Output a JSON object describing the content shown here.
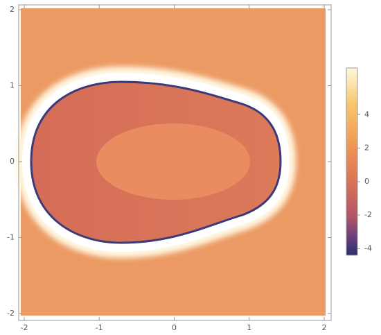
{
  "chart_data": {
    "type": "density",
    "xlim": [
      -2,
      2
    ],
    "ylim": [
      -2,
      2
    ],
    "xticks": [
      -2,
      -1,
      0,
      1,
      2
    ],
    "yticks": [
      -2,
      -1,
      0,
      1,
      2
    ],
    "colorbar": {
      "lim": [
        -4.4,
        6.8
      ],
      "ticks": [
        -4,
        -2,
        0,
        2,
        4
      ]
    }
  }
}
